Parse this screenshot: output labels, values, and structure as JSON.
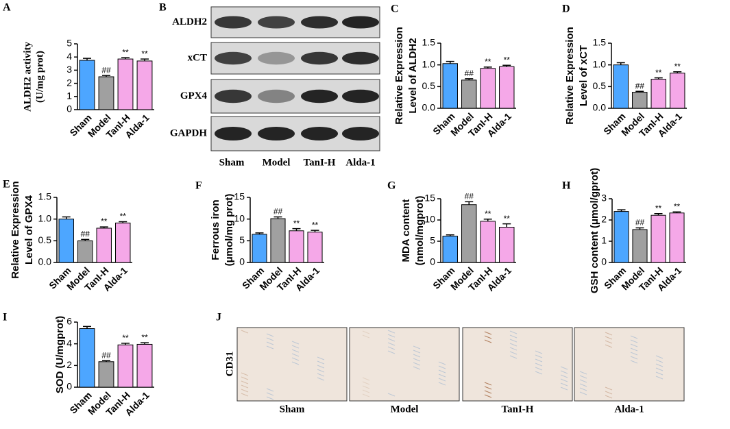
{
  "chart_data": [
    {
      "type": "bar",
      "panel": "A",
      "ylabel": [
        "ALDH2 activity",
        "(U/mg prot)"
      ],
      "categories": [
        "Sham",
        "Model",
        "TanI-H",
        "Alda-1"
      ],
      "values": [
        3.75,
        2.5,
        3.85,
        3.7
      ],
      "errors": [
        0.15,
        0.1,
        0.1,
        0.15
      ],
      "annotations": [
        null,
        "##",
        "**",
        "**"
      ],
      "colors": [
        "#4da6ff",
        "#a0a0a0",
        "#f5a8e8",
        "#f5a8e8"
      ],
      "ylim": [
        0,
        5
      ],
      "yticks": [
        0,
        1,
        2,
        3,
        4,
        5
      ]
    },
    {
      "type": "bar",
      "panel": "C",
      "ylabel": [
        "Relative Expression",
        "Level of  ALDH2"
      ],
      "categories": [
        "Sham",
        "Model",
        "TanI-H",
        "Alda-1"
      ],
      "values": [
        1.03,
        0.65,
        0.92,
        0.96
      ],
      "errors": [
        0.05,
        0.03,
        0.03,
        0.03
      ],
      "annotations": [
        null,
        "##",
        "**",
        "**"
      ],
      "colors": [
        "#4da6ff",
        "#a0a0a0",
        "#f5a8e8",
        "#f5a8e8"
      ],
      "ylim": [
        0,
        1.5
      ],
      "yticks": [
        {
          "value": 0,
          "label": "0.0"
        },
        0.5,
        {
          "value": 1,
          "label": "1.0"
        },
        1.5
      ]
    },
    {
      "type": "bar",
      "panel": "D",
      "ylabel": [
        "Relative Expression",
        "Level of  xCT"
      ],
      "categories": [
        "Sham",
        "Model",
        "TanI-H",
        "Alda-1"
      ],
      "values": [
        1.0,
        0.37,
        0.67,
        0.81
      ],
      "errors": [
        0.05,
        0.02,
        0.03,
        0.03
      ],
      "annotations": [
        null,
        "##",
        "**",
        "**"
      ],
      "colors": [
        "#4da6ff",
        "#a0a0a0",
        "#f5a8e8",
        "#f5a8e8"
      ],
      "ylim": [
        0,
        1.5
      ],
      "yticks": [
        {
          "value": 0,
          "label": "0.0"
        },
        0.5,
        {
          "value": 1,
          "label": "1.0"
        },
        1.5
      ]
    },
    {
      "type": "bar",
      "panel": "E",
      "ylabel": [
        "Relative Expression",
        "Level of  GPX4"
      ],
      "categories": [
        "Sham",
        "Model",
        "TanI-H",
        "Alda-1"
      ],
      "values": [
        1.0,
        0.5,
        0.79,
        0.91
      ],
      "errors": [
        0.05,
        0.03,
        0.03,
        0.03
      ],
      "annotations": [
        null,
        "##",
        "**",
        "**"
      ],
      "colors": [
        "#4da6ff",
        "#a0a0a0",
        "#f5a8e8",
        "#f5a8e8"
      ],
      "ylim": [
        0,
        1.5
      ],
      "yticks": [
        {
          "value": 0,
          "label": "0.0"
        },
        0.5,
        {
          "value": 1,
          "label": "1.0"
        },
        1.5
      ]
    },
    {
      "type": "bar",
      "panel": "F",
      "ylabel": [
        "Ferrous iron",
        "(μmol/mg prot)"
      ],
      "categories": [
        "Sham",
        "Model",
        "TanI-H",
        "Alda-1"
      ],
      "values": [
        6.5,
        10.1,
        7.3,
        7.0
      ],
      "errors": [
        0.3,
        0.4,
        0.5,
        0.4
      ],
      "annotations": [
        null,
        "##",
        "**",
        "**"
      ],
      "colors": [
        "#4da6ff",
        "#a0a0a0",
        "#f5a8e8",
        "#f5a8e8"
      ],
      "ylim": [
        0,
        15
      ],
      "yticks": [
        0,
        5,
        10,
        15
      ]
    },
    {
      "type": "bar",
      "panel": "G",
      "ylabel": [
        "MDA content",
        "(nmol/mgprot)"
      ],
      "categories": [
        "Sham",
        "Model",
        "TanI-H",
        "Alda-1"
      ],
      "values": [
        6.2,
        13.6,
        9.7,
        8.3
      ],
      "errors": [
        0.3,
        0.7,
        0.5,
        0.8
      ],
      "annotations": [
        null,
        "##",
        "**",
        "**"
      ],
      "colors": [
        "#4da6ff",
        "#a0a0a0",
        "#f5a8e8",
        "#f5a8e8"
      ],
      "ylim": [
        0,
        15
      ],
      "yticks": [
        0,
        5,
        10,
        15
      ]
    },
    {
      "type": "bar",
      "panel": "H",
      "ylabel": [
        "GSH content  (μmol/gprot)"
      ],
      "categories": [
        "Sham",
        "Model",
        "TanI-H",
        "Alda-1"
      ],
      "values": [
        2.4,
        1.55,
        2.22,
        2.33
      ],
      "errors": [
        0.08,
        0.08,
        0.08,
        0.05
      ],
      "annotations": [
        null,
        "##",
        "**",
        "**"
      ],
      "colors": [
        "#4da6ff",
        "#a0a0a0",
        "#f5a8e8",
        "#f5a8e8"
      ],
      "ylim": [
        0,
        3
      ],
      "yticks": [
        0,
        1,
        2,
        3
      ]
    },
    {
      "type": "bar",
      "panel": "I",
      "ylabel": [
        "SOD (U/mgprot)"
      ],
      "categories": [
        "Sham",
        "Model",
        "TanI-H",
        "Alda-1"
      ],
      "values": [
        5.4,
        2.35,
        3.9,
        3.95
      ],
      "errors": [
        0.2,
        0.1,
        0.15,
        0.15
      ],
      "annotations": [
        null,
        "##",
        "**",
        "**"
      ],
      "colors": [
        "#4da6ff",
        "#a0a0a0",
        "#f5a8e8",
        "#f5a8e8"
      ],
      "ylim": [
        0,
        6
      ],
      "yticks": [
        0,
        2,
        4,
        6
      ]
    }
  ],
  "blot": {
    "panel": "B",
    "proteins": [
      "ALDH2",
      "xCT",
      "GPX4",
      "GAPDH"
    ],
    "groups": [
      "Sham",
      "Model",
      "TanI-H",
      "Alda-1"
    ]
  },
  "histology": {
    "panel": "J",
    "stain": "CD31",
    "groups": [
      "Sham",
      "Model",
      "TanI-H",
      "Alda-1"
    ]
  }
}
